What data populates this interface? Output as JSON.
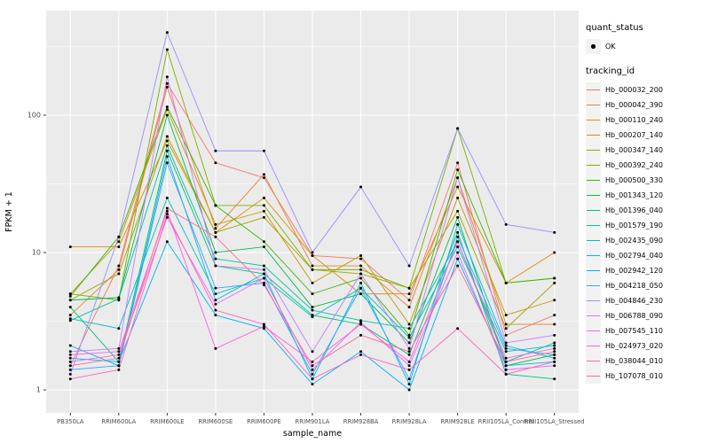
{
  "chart_data": {
    "type": "line",
    "title": "",
    "xlabel": "sample_name",
    "ylabel": "FPKM + 1",
    "y_scale": "log10",
    "y_ticks": [
      1,
      10,
      100
    ],
    "y_minor_ticks": [
      3.1623,
      31.623,
      316.23
    ],
    "ylim": [
      0.9,
      550
    ],
    "grid": true,
    "legend_position": "right",
    "panel_bg": "#EBEBEB",
    "grid_color": "#FFFFFF",
    "tick_text_color": "#4D4D4D",
    "point_color": "#000000",
    "categories": [
      "PB350LA",
      "RRIM600LA",
      "RRIM600LE",
      "RRIM600SE",
      "RRIM600PE",
      "RRIM901LA",
      "RRIM928BA",
      "RRIM928LA",
      "RRIM928LE",
      "RRII105LA_Control",
      "RRII105LA_Stressed"
    ],
    "series": [
      {
        "name": "Hb_000032_200",
        "color": "#F8766D",
        "values": [
          1.5,
          8,
          170,
          45,
          35,
          9.5,
          9,
          4.5,
          45,
          2.5,
          3.5
        ]
      },
      {
        "name": "Hb_000042_390",
        "color": "#EA8331",
        "values": [
          3.5,
          7.5,
          160,
          15,
          37,
          8,
          8,
          4,
          35,
          3,
          3
        ]
      },
      {
        "name": "Hb_000110_240",
        "color": "#D89000",
        "values": [
          11,
          11,
          65,
          14,
          25,
          9.5,
          5,
          5,
          30,
          6,
          10
        ]
      },
      {
        "name": "Hb_000207_140",
        "color": "#C09B00",
        "values": [
          5,
          12,
          110,
          16,
          20,
          6,
          9.5,
          3,
          25,
          3.5,
          4.5
        ]
      },
      {
        "name": "Hb_000347_140",
        "color": "#A3A500",
        "values": [
          4.5,
          7,
          70,
          14,
          18,
          7.5,
          7,
          5.5,
          20,
          2.8,
          6
        ]
      },
      {
        "name": "Hb_000392_240",
        "color": "#7CAE00",
        "values": [
          5,
          4.5,
          300,
          22,
          22,
          7.5,
          7.5,
          5.5,
          80,
          6,
          6.5
        ]
      },
      {
        "name": "Hb_000500_330",
        "color": "#39B600",
        "values": [
          4.8,
          13,
          115,
          22,
          12,
          5,
          6.5,
          2.5,
          40,
          6,
          6.5
        ]
      },
      {
        "name": "Hb_001343_120",
        "color": "#00BB4E",
        "values": [
          4.5,
          4.7,
          100,
          10,
          11,
          4,
          5,
          2.2,
          18,
          1.5,
          1.8
        ]
      },
      {
        "name": "Hb_001396_040",
        "color": "#00BF7D",
        "values": [
          4,
          1.6,
          55,
          8,
          7,
          3.5,
          3,
          1.8,
          14,
          1.3,
          1.2
        ]
      },
      {
        "name": "Hb_001579_190",
        "color": "#00C1A3",
        "values": [
          3.2,
          4.6,
          60,
          9,
          8,
          3.8,
          3.2,
          2.8,
          12,
          1.6,
          2.2
        ]
      },
      {
        "name": "Hb_002435_090",
        "color": "#00BFC4",
        "values": [
          3.3,
          2.8,
          25,
          5,
          6.5,
          3.4,
          5.5,
          2.4,
          11,
          1.9,
          2.1
        ]
      },
      {
        "name": "Hb_002794_040",
        "color": "#00BAE0",
        "values": [
          2.1,
          1.5,
          50,
          4.5,
          7,
          1.2,
          6,
          1.1,
          16,
          2.1,
          1.7
        ]
      },
      {
        "name": "Hb_002942_120",
        "color": "#00B0F6",
        "values": [
          1.7,
          1.6,
          12,
          3.5,
          2.8,
          1.1,
          1.9,
          1.0,
          9,
          1.5,
          1.6
        ]
      },
      {
        "name": "Hb_004218_050",
        "color": "#35A2FF",
        "values": [
          1.4,
          1.5,
          45,
          5.5,
          6,
          1.3,
          5.5,
          1.2,
          13,
          2.0,
          1.8
        ]
      },
      {
        "name": "Hb_004846_230",
        "color": "#9590FF",
        "values": [
          1.3,
          13,
          400,
          55,
          55,
          10,
          30,
          8,
          80,
          16,
          14
        ]
      },
      {
        "name": "Hb_006788_090",
        "color": "#C77CFF",
        "values": [
          1.9,
          2.0,
          190,
          8,
          7.5,
          1.9,
          7,
          2.0,
          35,
          2.2,
          2.5
        ]
      },
      {
        "name": "Hb_007545_110",
        "color": "#E76BF3",
        "values": [
          1.6,
          1.8,
          18,
          4.2,
          6.5,
          1.4,
          3.1,
          1.5,
          10,
          1.4,
          1.5
        ]
      },
      {
        "name": "Hb_024973_020",
        "color": "#FA62DB",
        "values": [
          1.8,
          1.9,
          20,
          2.0,
          2.9,
          1.6,
          3.0,
          1.6,
          12,
          1.7,
          2.0
        ]
      },
      {
        "name": "Hb_038044_010",
        "color": "#FF62BC",
        "values": [
          1.2,
          1.4,
          19,
          3.8,
          3.0,
          1.2,
          1.8,
          1.4,
          2.8,
          1.3,
          1.6
        ]
      },
      {
        "name": "Hb_107078_010",
        "color": "#FF6A98",
        "values": [
          1.5,
          1.7,
          21,
          13,
          5.8,
          1.5,
          2.5,
          1.9,
          8,
          1.6,
          1.9
        ]
      }
    ],
    "legend": {
      "quant_status_title": "quant_status",
      "quant_status_items": [
        {
          "label": "OK",
          "shape": "point"
        }
      ],
      "tracking_id_title": "tracking_id"
    }
  }
}
